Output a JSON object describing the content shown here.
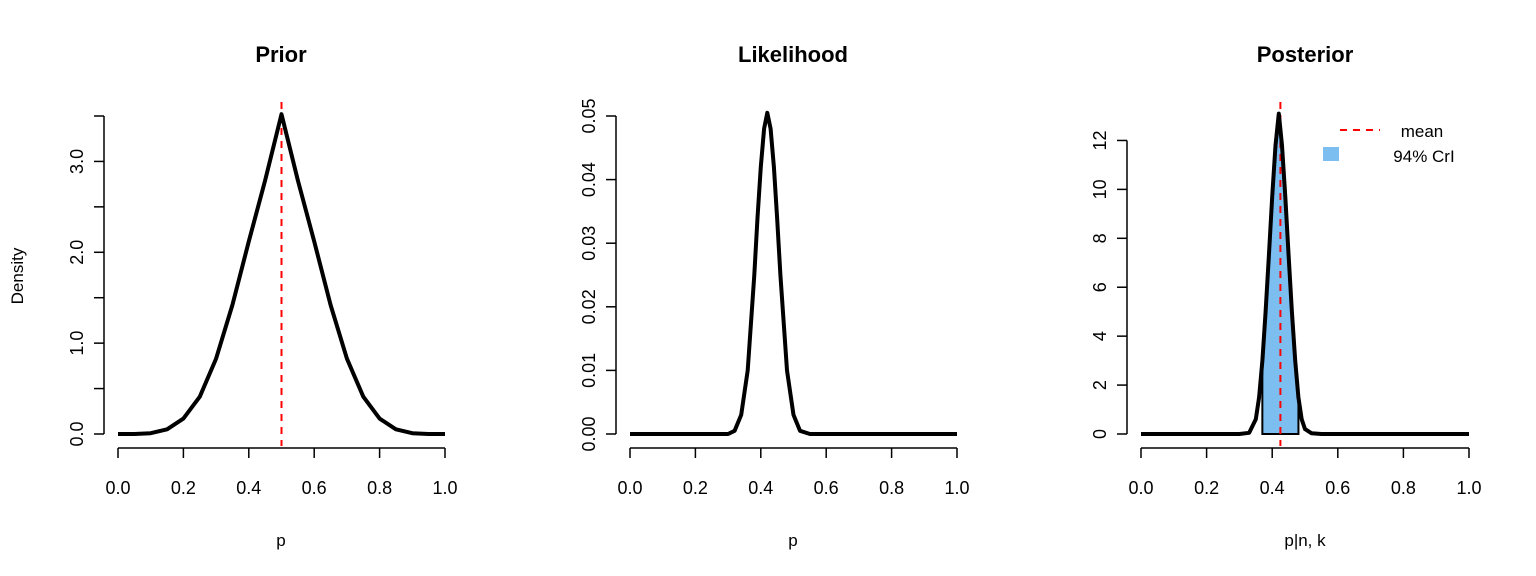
{
  "chart_data": [
    {
      "type": "line",
      "title": "Prior",
      "xlabel": "p",
      "ylabel": "Density",
      "xlim": [
        0,
        1
      ],
      "ylim": [
        0,
        3.5
      ],
      "x_ticks": [
        0.0,
        0.2,
        0.4,
        0.6,
        0.8,
        1.0
      ],
      "x_tick_labels": [
        "0.0",
        "0.2",
        "0.4",
        "0.6",
        "0.8",
        "1.0"
      ],
      "y_ticks": [
        0.0,
        0.5,
        1.0,
        1.5,
        2.0,
        2.5,
        3.0,
        3.5
      ],
      "y_tick_labels": [
        "0.0",
        "",
        "1.0",
        "",
        "2.0",
        "",
        "3.0",
        ""
      ],
      "series": [
        {
          "color": "#000000",
          "x": [
            0.0,
            0.05,
            0.1,
            0.15,
            0.2,
            0.25,
            0.3,
            0.35,
            0.4,
            0.45,
            0.5,
            0.55,
            0.6,
            0.65,
            0.7,
            0.75,
            0.8,
            0.85,
            0.9,
            0.95,
            1.0
          ],
          "y": [
            0.0,
            0.0005,
            0.009,
            0.052,
            0.17,
            0.41,
            0.83,
            1.42,
            2.12,
            2.79,
            3.52,
            2.79,
            2.12,
            1.42,
            0.83,
            0.41,
            0.17,
            0.052,
            0.009,
            0.0005,
            0.0
          ]
        }
      ],
      "vline": {
        "x": 0.5,
        "color": "#ff0000",
        "style": "dashed"
      }
    },
    {
      "type": "line",
      "title": "Likelihood",
      "xlabel": "p",
      "ylabel": "",
      "xlim": [
        0,
        1
      ],
      "ylim": [
        0,
        0.05
      ],
      "x_ticks": [
        0.0,
        0.2,
        0.4,
        0.6,
        0.8,
        1.0
      ],
      "x_tick_labels": [
        "0.0",
        "0.2",
        "0.4",
        "0.6",
        "0.8",
        "1.0"
      ],
      "y_ticks": [
        0.0,
        0.01,
        0.02,
        0.03,
        0.04,
        0.05
      ],
      "y_tick_labels": [
        "0.00",
        "0.01",
        "0.02",
        "0.03",
        "0.04",
        "0.05"
      ],
      "series": [
        {
          "color": "#000000",
          "x": [
            0.0,
            0.3,
            0.32,
            0.34,
            0.36,
            0.38,
            0.39,
            0.4,
            0.41,
            0.42,
            0.43,
            0.44,
            0.45,
            0.46,
            0.48,
            0.5,
            0.52,
            0.55,
            1.0
          ],
          "y": [
            0.0,
            0.0,
            0.0005,
            0.003,
            0.01,
            0.025,
            0.034,
            0.042,
            0.048,
            0.0505,
            0.048,
            0.042,
            0.034,
            0.025,
            0.01,
            0.003,
            0.0005,
            0.0,
            0.0
          ]
        }
      ]
    },
    {
      "type": "line",
      "title": "Posterior",
      "xlabel": "p|n, k",
      "ylabel": "",
      "xlim": [
        0,
        1
      ],
      "ylim": [
        0,
        13
      ],
      "x_ticks": [
        0.0,
        0.2,
        0.4,
        0.6,
        0.8,
        1.0
      ],
      "x_tick_labels": [
        "0.0",
        "0.2",
        "0.4",
        "0.6",
        "0.8",
        "1.0"
      ],
      "y_ticks": [
        0,
        2,
        4,
        6,
        8,
        10,
        12
      ],
      "y_tick_labels": [
        "0",
        "2",
        "4",
        "6",
        "8",
        "10",
        "12"
      ],
      "series": [
        {
          "color": "#000000",
          "x": [
            0.0,
            0.3,
            0.33,
            0.35,
            0.36,
            0.37,
            0.38,
            0.39,
            0.4,
            0.41,
            0.42,
            0.43,
            0.44,
            0.45,
            0.46,
            0.47,
            0.48,
            0.49,
            0.5,
            0.52,
            0.55,
            1.0
          ],
          "y": [
            0.0,
            0.0,
            0.05,
            0.6,
            1.5,
            3.0,
            5.0,
            7.3,
            9.7,
            11.8,
            13.1,
            11.8,
            9.7,
            7.3,
            5.0,
            3.0,
            1.5,
            0.6,
            0.2,
            0.03,
            0.0,
            0.0
          ]
        }
      ],
      "vline": {
        "x": 0.425,
        "color": "#ff0000",
        "style": "dashed"
      },
      "credible_interval": {
        "lower": 0.37,
        "upper": 0.48,
        "color": "#7cbef0"
      },
      "legend": {
        "position": "top-right",
        "items": [
          {
            "label": "mean",
            "kind": "dashed-line",
            "color": "#ff0000"
          },
          {
            "label": "94% CrI",
            "kind": "filled-box",
            "color": "#7cbef0"
          }
        ]
      }
    }
  ]
}
